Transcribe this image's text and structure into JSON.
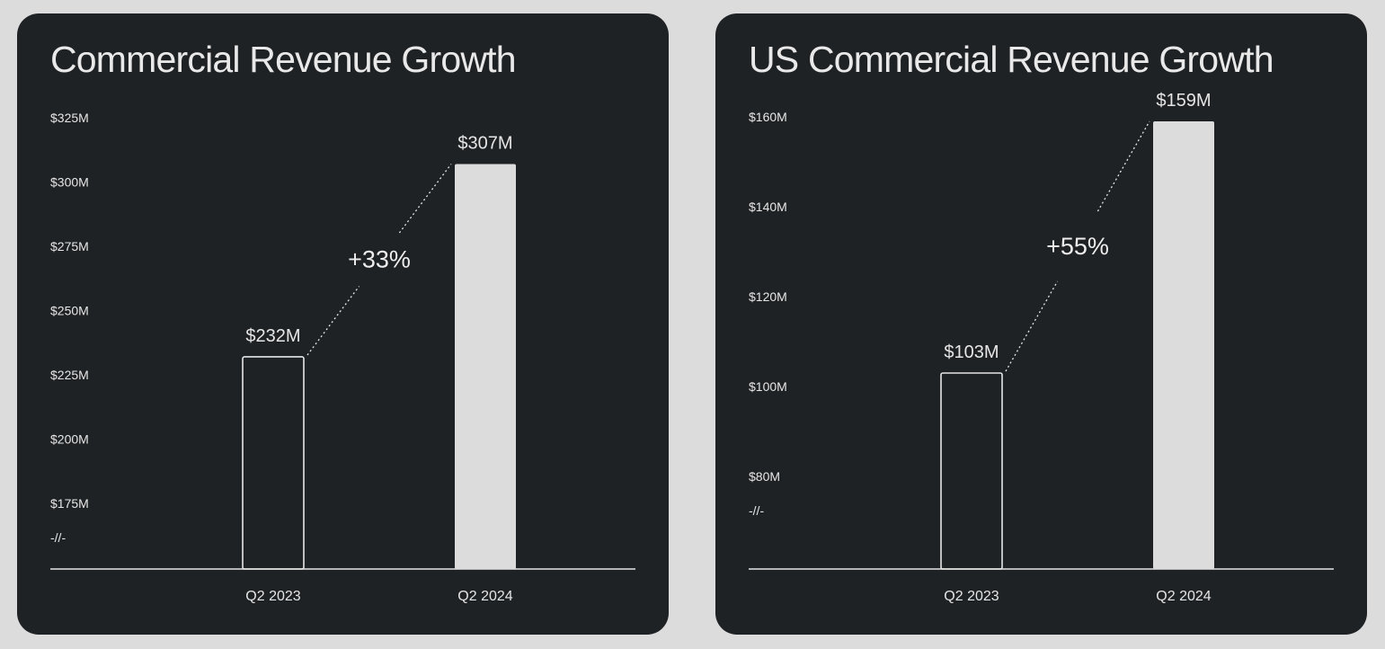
{
  "chart_data": [
    {
      "type": "bar",
      "title": "Commercial Revenue Growth",
      "categories": [
        "Q2 2023",
        "Q2 2024"
      ],
      "values": [
        232,
        307
      ],
      "value_labels": [
        "$232M",
        "$307M"
      ],
      "bar_styles": [
        "outline",
        "filled"
      ],
      "unit": "$M",
      "ylim": [
        165,
        325
      ],
      "yticks": [
        175,
        200,
        225,
        250,
        275,
        300,
        325
      ],
      "ytick_labels": [
        "$175M",
        "$200M",
        "$225M",
        "$250M",
        "$275M",
        "$300M",
        "$325M"
      ],
      "axis_break": true,
      "axis_break_label": "-//-",
      "growth_annotation": "+33%",
      "xlabel": "",
      "ylabel": "",
      "grid": false,
      "legend": "none"
    },
    {
      "type": "bar",
      "title": "US Commercial Revenue Growth",
      "categories": [
        "Q2 2023",
        "Q2 2024"
      ],
      "values": [
        103,
        159
      ],
      "value_labels": [
        "$103M",
        "$159M"
      ],
      "bar_styles": [
        "outline",
        "filled"
      ],
      "unit": "$M",
      "ylim": [
        80,
        160
      ],
      "yticks": [
        80,
        100,
        120,
        140,
        160
      ],
      "ytick_labels": [
        "$80M",
        "$100M",
        "$120M",
        "$140M",
        "$160M"
      ],
      "axis_break": true,
      "axis_break_label": "-//-",
      "growth_annotation": "+55%",
      "xlabel": "",
      "ylabel": "",
      "grid": false,
      "legend": "none"
    }
  ],
  "colors": {
    "page_background": "#dcdcdc",
    "panel_background": "#1f2225",
    "text": "#e6e6e6",
    "bar_fill": "#dcdcdc",
    "bar_outline": "#e6e6e6",
    "axis": "#e6e6e6"
  }
}
